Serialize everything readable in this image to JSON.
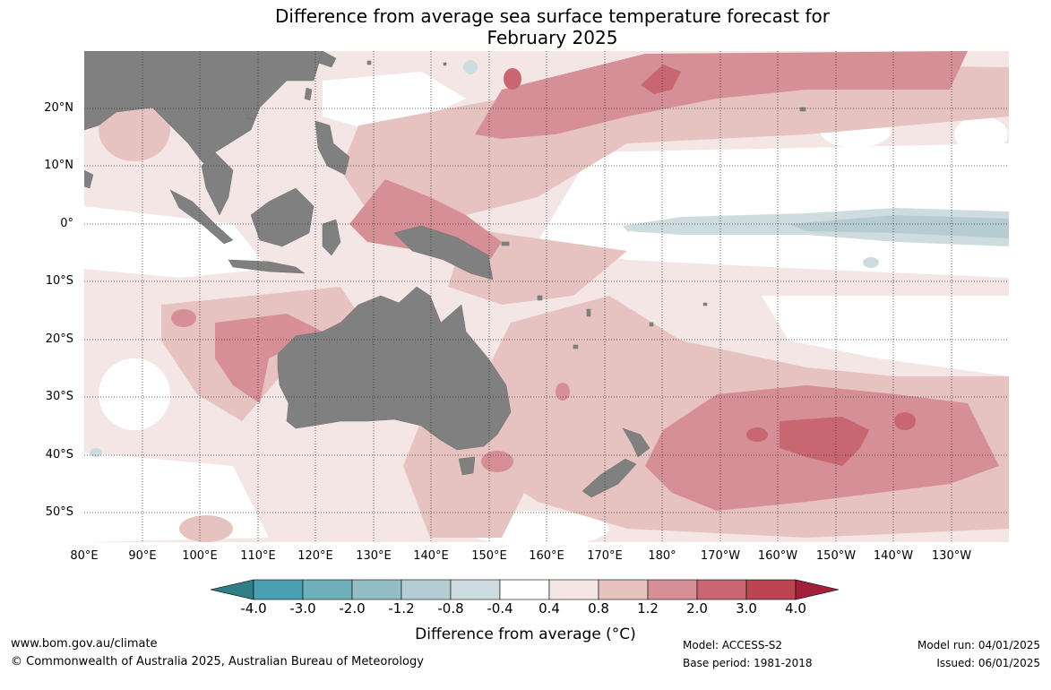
{
  "title_line1": "Difference from average sea surface temperature forecast for",
  "title_line2": "February 2025",
  "lat_labels": [
    "20°N",
    "10°N",
    "0°",
    "10°S",
    "20°S",
    "30°S",
    "40°S",
    "50°S"
  ],
  "lon_labels": [
    "80°E",
    "90°E",
    "100°E",
    "110°E",
    "120°E",
    "130°E",
    "140°E",
    "150°E",
    "160°E",
    "170°E",
    "180°",
    "170°W",
    "160°W",
    "150°W",
    "140°W",
    "130°W"
  ],
  "colorbar": {
    "ticks": [
      "-4.0",
      "-3.0",
      "-2.0",
      "-1.2",
      "-0.8",
      "-0.4",
      "0.4",
      "0.8",
      "1.2",
      "2.0",
      "3.0",
      "4.0"
    ],
    "colors": [
      "#2f7e86",
      "#4aa0b0",
      "#6fb0bd",
      "#93bcc5",
      "#b5cdd2",
      "#cfdcdf",
      "#ffffff",
      "#f4e6e5",
      "#e6c3c1",
      "#d68f96",
      "#c86671",
      "#bb4550",
      "#a3203a"
    ],
    "label": "Difference from average (°C)"
  },
  "legend_colors": {
    "land": "#808080",
    "neutral": "#ffffff",
    "warm_light": "#f4e6e5",
    "warm_mid": "#e6c3c1",
    "warm_high": "#d68f96",
    "warm_higher": "#c86671",
    "cool_light": "#cfdcdf",
    "cool_mid": "#b5cdd2"
  },
  "footer": {
    "website": "www.bom.gov.au/climate",
    "copyright": "© Commonwealth of Australia 2025, Australian Bureau of Meteorology",
    "model": "Model: ACCESS-S2",
    "base_period": "Base period: 1981-2018",
    "model_run": "Model run: 04/01/2025",
    "issued": "Issued: 06/01/2025"
  }
}
